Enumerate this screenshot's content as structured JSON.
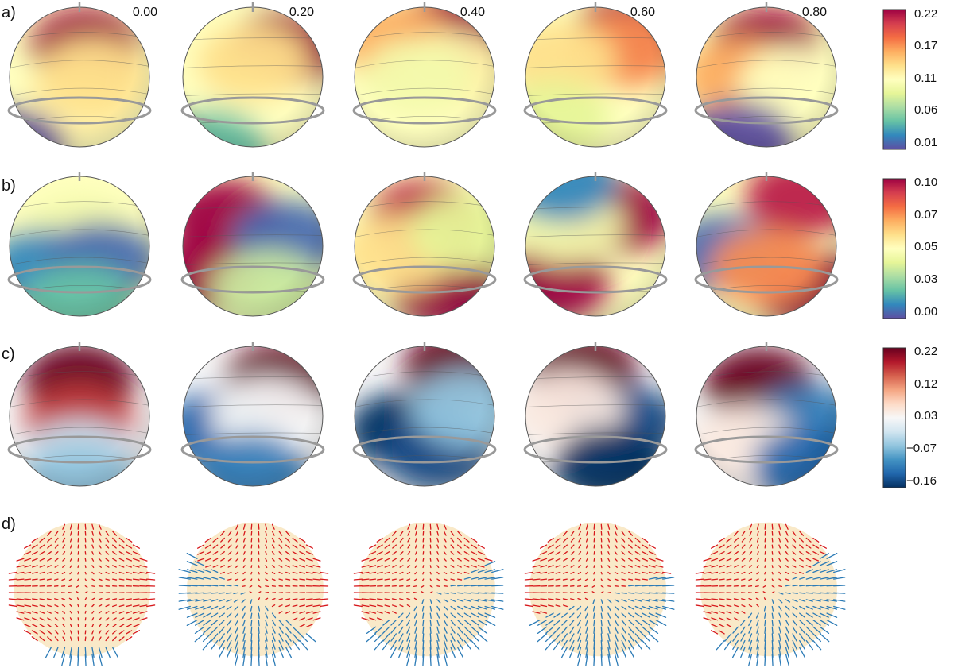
{
  "figure": {
    "phases": [
      "0.00",
      "0.20",
      "0.40",
      "0.60",
      "0.80"
    ],
    "rows": [
      {
        "label": "a)",
        "type": "field",
        "colormap": "spectral",
        "colorbar_ticks": [
          "0.22",
          "0.17",
          "0.11",
          "0.06",
          "0.01"
        ],
        "spots": [
          [
            [
              0.55,
              0.72,
              1.0
            ],
            [
              0.5,
              0.3,
              0.55
            ],
            [
              0.6,
              0.5,
              0.6
            ],
            [
              0.0,
              0.0,
              0.0
            ]
          ],
          [
            [
              0.72,
              0.7,
              1.0
            ],
            [
              0.35,
              0.35,
              0.5
            ],
            [
              0.5,
              0.6,
              0.6
            ],
            [
              0.2,
              0.0,
              0.2
            ]
          ],
          [
            [
              0.72,
              0.85,
              1.0
            ],
            [
              0.3,
              0.75,
              0.7
            ],
            [
              0.7,
              0.55,
              0.55
            ],
            [
              0.45,
              0.5,
              0.45
            ]
          ],
          [
            [
              0.75,
              0.82,
              1.0
            ],
            [
              0.72,
              0.7,
              0.75
            ],
            [
              0.25,
              0.62,
              0.6
            ],
            [
              0.2,
              0.2,
              0.4
            ]
          ],
          [
            [
              0.5,
              0.72,
              1.0
            ],
            [
              0.3,
              0.5,
              0.7
            ],
            [
              0.7,
              0.45,
              0.5
            ],
            [
              0.3,
              0.05,
              0.0
            ]
          ]
        ]
      },
      {
        "label": "b)",
        "type": "field",
        "colormap": "spectral",
        "colorbar_ticks": [
          "0.10",
          "0.07",
          "0.05",
          "0.03",
          "0.00"
        ],
        "spots": [
          [
            [
              0.5,
              0.6,
              0.45
            ],
            [
              0.25,
              0.35,
              0.1
            ],
            [
              0.65,
              0.4,
              0.05
            ],
            [
              0.5,
              0.1,
              0.2
            ]
          ],
          [
            [
              0.3,
              0.7,
              1.0
            ],
            [
              0.15,
              0.3,
              1.0
            ],
            [
              0.75,
              0.55,
              0.05
            ],
            [
              0.6,
              0.2,
              0.35
            ]
          ],
          [
            [
              0.5,
              0.7,
              0.95
            ],
            [
              0.65,
              0.2,
              1.0
            ],
            [
              0.3,
              0.45,
              0.6
            ],
            [
              0.8,
              0.6,
              0.4
            ]
          ],
          [
            [
              0.65,
              0.72,
              1.0
            ],
            [
              0.2,
              0.25,
              1.0
            ],
            [
              0.3,
              0.65,
              0.45
            ],
            [
              0.25,
              0.95,
              0.1
            ]
          ],
          [
            [
              0.75,
              0.85,
              0.95
            ],
            [
              0.8,
              0.2,
              1.0
            ],
            [
              0.2,
              0.45,
              0.05
            ],
            [
              0.5,
              0.35,
              0.75
            ]
          ]
        ]
      },
      {
        "label": "c)",
        "type": "field",
        "colormap": "diverging",
        "colorbar_ticks": [
          "0.22",
          "0.12",
          "0.03",
          "−0.07",
          "−0.16"
        ],
        "spots": [
          [
            [
              0.5,
              0.75,
              1.0
            ],
            [
              0.5,
              0.45,
              0.85
            ],
            [
              0.5,
              0.2,
              0.4
            ],
            [
              0.5,
              0.05,
              0.3
            ]
          ],
          [
            [
              0.7,
              0.75,
              1.0
            ],
            [
              0.25,
              0.4,
              0.1
            ],
            [
              0.6,
              0.5,
              0.5
            ],
            [
              0.5,
              0.1,
              0.15
            ]
          ],
          [
            [
              0.75,
              0.85,
              1.0
            ],
            [
              0.35,
              0.4,
              0.0
            ],
            [
              0.6,
              0.25,
              0.05
            ],
            [
              0.8,
              0.55,
              0.3
            ]
          ],
          [
            [
              0.4,
              0.82,
              1.0
            ],
            [
              0.7,
              0.45,
              0.05
            ],
            [
              0.3,
              0.55,
              0.55
            ],
            [
              0.6,
              0.15,
              0.0
            ]
          ],
          [
            [
              0.45,
              0.72,
              1.0
            ],
            [
              0.8,
              0.45,
              0.15
            ],
            [
              0.35,
              0.3,
              0.55
            ],
            [
              0.8,
              0.15,
              0.1
            ]
          ]
        ]
      },
      {
        "label": "d)",
        "type": "vectors",
        "boundary_tilt": [
          0.0,
          35.0,
          -30.0,
          -20.0,
          -40.0
        ],
        "colors": {
          "positive": "#d7191c",
          "negative": "#2c7bb6",
          "surface": "#f9e9c8"
        }
      }
    ]
  }
}
